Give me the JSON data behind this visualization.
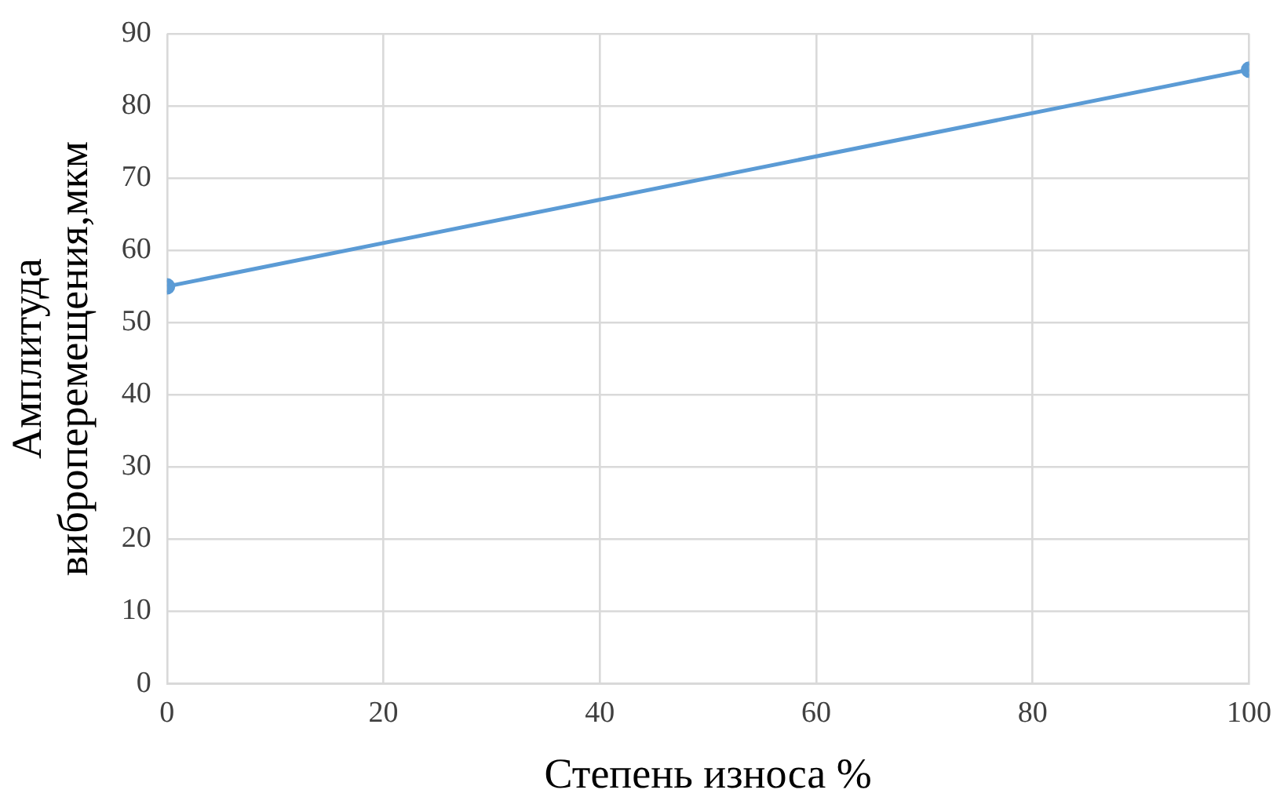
{
  "chart_data": {
    "type": "line",
    "xlabel": "Степень износа %",
    "ylabel": "Амплитуда виброперемещения,мкм",
    "x": [
      0,
      100
    ],
    "series": [
      {
        "color": "#5b9bd5",
        "values": [
          55,
          85
        ]
      }
    ],
    "xlim": [
      0,
      100
    ],
    "xticks": [
      0,
      20,
      40,
      60,
      80,
      100
    ],
    "ylim": [
      0,
      90
    ],
    "yticks": [
      0,
      10,
      20,
      30,
      40,
      50,
      60,
      70,
      80,
      90
    ],
    "grid": true,
    "legend": false,
    "marker": "circle",
    "line_style": "solid"
  }
}
